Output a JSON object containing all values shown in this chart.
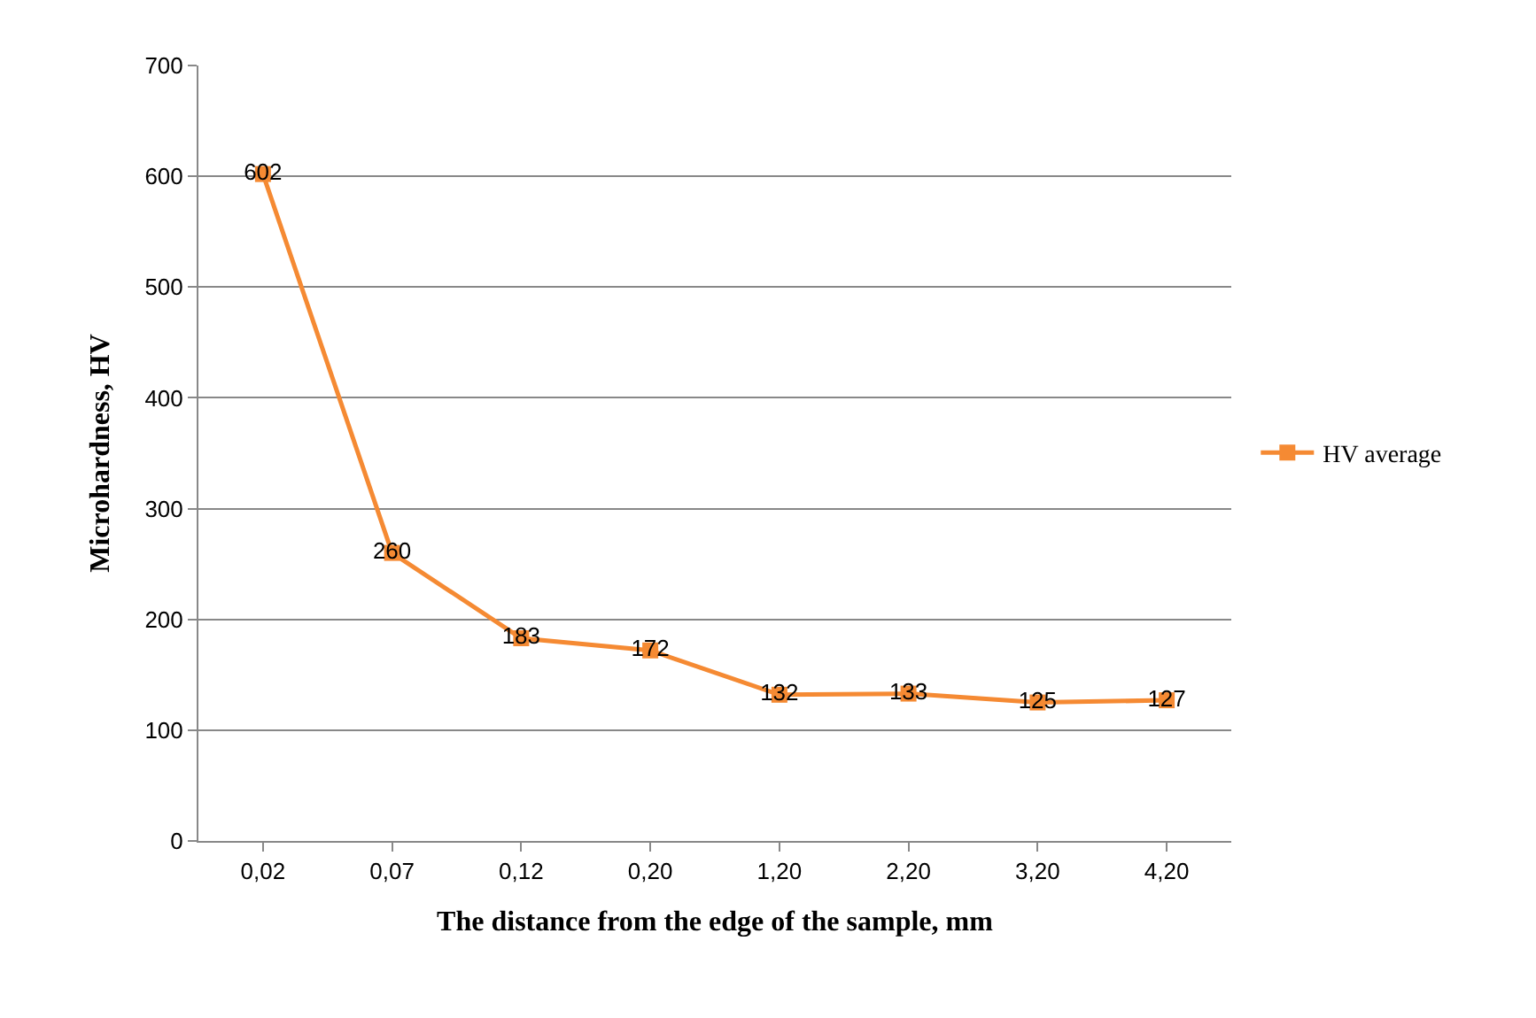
{
  "chart_data": {
    "type": "line",
    "xlabel": "The distance from the edge of the sample, mm",
    "ylabel": "Microhardness, HV",
    "categories": [
      "0,02",
      "0,07",
      "0,12",
      "0,20",
      "1,20",
      "2,20",
      "3,20",
      "4,20"
    ],
    "series": [
      {
        "name": "HV average",
        "color": "#f58a33",
        "values": [
          602,
          260,
          183,
          172,
          132,
          133,
          125,
          127
        ]
      }
    ],
    "ylim": [
      0,
      700
    ],
    "yticks": [
      0,
      100,
      200,
      300,
      400,
      500,
      600,
      700
    ],
    "grid": "y",
    "legend": "right",
    "marker": "square",
    "line_style": "solid",
    "data_labels": true
  }
}
